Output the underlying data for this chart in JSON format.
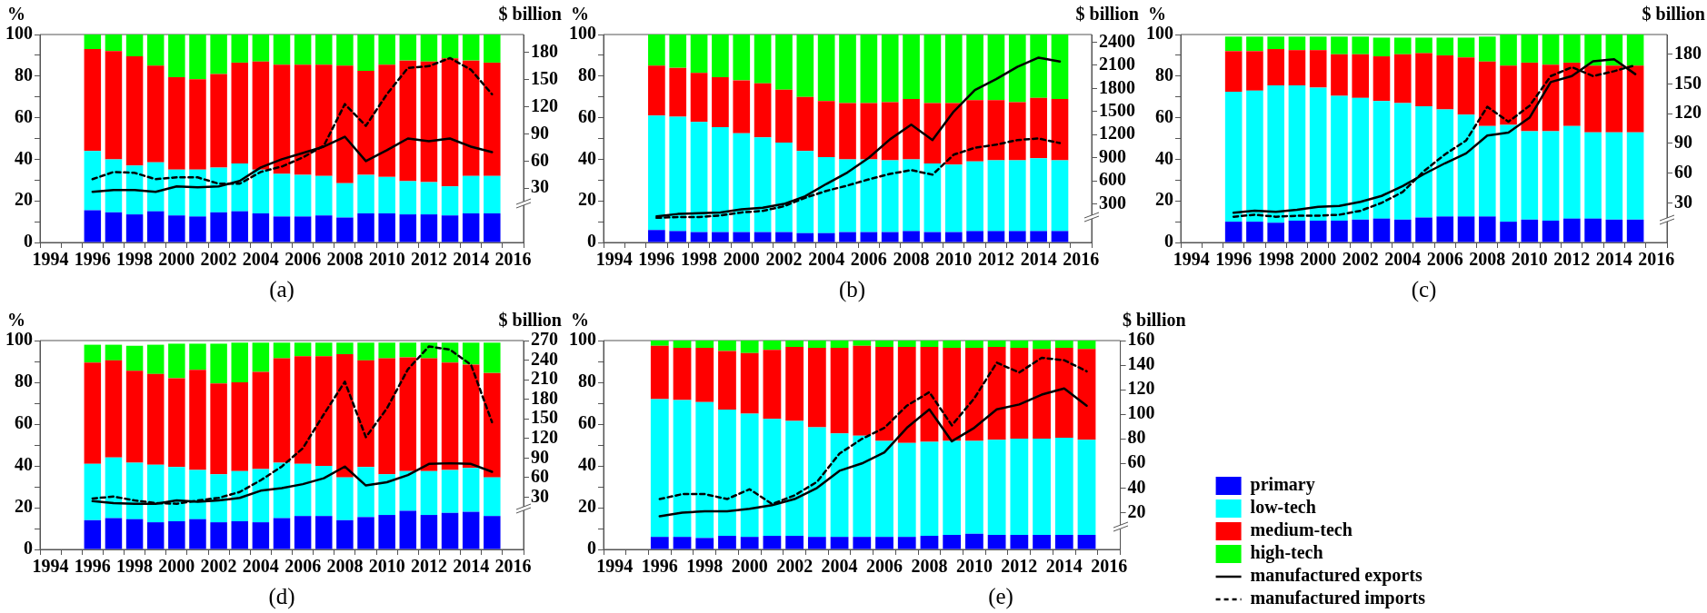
{
  "chart_data": [
    {
      "type": "bar",
      "title": "(a)",
      "ylabel": "%",
      "y2label": "$ billion",
      "stacked": true,
      "categories": [
        "1994",
        null,
        "1996",
        null,
        "1998",
        null,
        "2000",
        null,
        "2002",
        null,
        "2004",
        null,
        "2006",
        null,
        "2008",
        null,
        "2010",
        null,
        "2012",
        null,
        "2014",
        null,
        "2016"
      ],
      "ylim": [
        0,
        100
      ],
      "yticks": [
        0,
        {
          "value": 10,
          "label": null
        },
        20,
        {
          "value": 30,
          "label": null
        },
        40,
        {
          "value": 50,
          "label": null
        },
        60,
        {
          "value": 70,
          "label": null
        },
        80,
        {
          "value": 90,
          "label": null
        },
        100
      ],
      "y2lim": [
        -30,
        200
      ],
      "y2ticks": [
        30,
        60,
        90,
        120,
        150,
        180
      ],
      "series": [
        {
          "color": "#0000ff",
          "values": [
            null,
            null,
            15.5,
            14.5,
            13.5,
            15,
            13,
            12.5,
            14.5,
            15,
            14,
            12.5,
            12.5,
            13,
            12,
            14,
            14,
            13.5,
            13.5,
            13,
            14,
            14,
            null
          ]
        },
        {
          "color": "#00ffff",
          "values": [
            null,
            null,
            28.5,
            25.5,
            23.5,
            23.5,
            22,
            22.5,
            21.5,
            23,
            21,
            20.5,
            20,
            19,
            16.5,
            18.5,
            17.5,
            16,
            15.5,
            14,
            18,
            18,
            null
          ]
        },
        {
          "color": "#ff0000",
          "values": [
            null,
            null,
            49,
            52,
            52.5,
            46.5,
            44.5,
            43.5,
            45,
            48.5,
            52,
            52.5,
            53,
            53.5,
            56.5,
            50,
            54,
            58,
            58,
            61.5,
            55.5,
            54.5,
            null
          ]
        },
        {
          "color": "#00ff00",
          "values": [
            null,
            null,
            7,
            8,
            10.5,
            15,
            20.5,
            21.5,
            19,
            13.5,
            13,
            14.5,
            14.5,
            14.5,
            15,
            17.5,
            14.5,
            12.5,
            13,
            11.5,
            12.5,
            13.5,
            null
          ]
        },
        {
          "type": "line",
          "axis": "y2",
          "color": "#000000",
          "line_style": "solid",
          "values": [
            null,
            null,
            26,
            28,
            28,
            26,
            32,
            31,
            32,
            38,
            53,
            62,
            69,
            76,
            87,
            60,
            72,
            85,
            82,
            85,
            76,
            70,
            null
          ]
        },
        {
          "type": "line",
          "axis": "y2",
          "color": "#000000",
          "line_style": "dashed",
          "values": [
            null,
            null,
            40,
            48,
            47,
            40,
            42,
            42,
            35,
            35,
            48,
            54,
            64,
            77,
            123,
            99,
            134,
            163,
            165,
            174,
            161,
            134,
            null
          ]
        }
      ]
    },
    {
      "type": "bar",
      "title": "(b)",
      "ylabel": "%",
      "y2label": "$ billion",
      "stacked": true,
      "categories": [
        "1994",
        null,
        "1996",
        null,
        "1998",
        null,
        "2000",
        null,
        "2002",
        null,
        "2004",
        null,
        "2006",
        null,
        "2008",
        null,
        "2010",
        null,
        "2012",
        null,
        "2014",
        null,
        "2016"
      ],
      "ylim": [
        0,
        100
      ],
      "yticks": [
        0,
        {
          "value": 10,
          "label": null
        },
        20,
        {
          "value": 30,
          "label": null
        },
        40,
        {
          "value": 50,
          "label": null
        },
        60,
        {
          "value": 70,
          "label": null
        },
        80,
        {
          "value": 90,
          "label": null
        },
        100
      ],
      "y2lim": [
        -200,
        2500
      ],
      "y2ticks": [
        300,
        600,
        900,
        1200,
        1500,
        1800,
        2100,
        2400
      ],
      "series": [
        {
          "color": "#0000ff",
          "values": [
            null,
            null,
            6,
            5.5,
            5,
            5,
            5,
            5,
            5,
            4.5,
            4.5,
            5,
            5,
            5,
            5.5,
            5,
            5,
            5.5,
            5.5,
            5.5,
            5.5,
            5.5,
            null
          ]
        },
        {
          "color": "#00ffff",
          "values": [
            null,
            null,
            55,
            55,
            53,
            50.5,
            47.5,
            45.5,
            43,
            39.5,
            36.5,
            35,
            35,
            34.5,
            34.5,
            33,
            32.5,
            33.5,
            34,
            34,
            35,
            34,
            null
          ]
        },
        {
          "color": "#ff0000",
          "values": [
            null,
            null,
            24,
            23.5,
            23.5,
            24,
            25.5,
            26,
            25.5,
            26,
            27,
            27,
            27,
            28,
            29,
            29,
            29.5,
            29.5,
            29,
            28,
            29,
            29.5,
            null
          ]
        },
        {
          "color": "#00ff00",
          "values": [
            null,
            null,
            15,
            16,
            18.5,
            20.5,
            22,
            23.5,
            26.5,
            30,
            32,
            33,
            33,
            32.5,
            31,
            33,
            33,
            31.5,
            31.5,
            32.5,
            30.5,
            31,
            null
          ]
        },
        {
          "type": "line",
          "axis": "y2",
          "color": "#000000",
          "line_style": "solid",
          "values": [
            null,
            null,
            140,
            170,
            180,
            190,
            230,
            250,
            300,
            400,
            560,
            710,
            900,
            1140,
            1330,
            1130,
            1500,
            1780,
            1920,
            2080,
            2200,
            2150,
            null
          ]
        },
        {
          "type": "line",
          "axis": "y2",
          "color": "#000000",
          "line_style": "dashed",
          "values": [
            null,
            null,
            120,
            130,
            130,
            150,
            190,
            210,
            270,
            380,
            470,
            540,
            620,
            690,
            740,
            680,
            940,
            1030,
            1070,
            1130,
            1150,
            1090,
            null
          ]
        }
      ]
    },
    {
      "type": "bar",
      "title": "(c)",
      "ylabel": "%",
      "y2label": "$ billion",
      "stacked": true,
      "categories": [
        "1994",
        null,
        "1996",
        null,
        "1998",
        null,
        "2000",
        null,
        "2002",
        null,
        "2004",
        null,
        "2006",
        null,
        "2008",
        null,
        "2010",
        null,
        "2012",
        null,
        "2014",
        null,
        "2016"
      ],
      "ylim": [
        0,
        100
      ],
      "yticks": [
        0,
        {
          "value": 10,
          "label": null
        },
        20,
        {
          "value": 30,
          "label": null
        },
        40,
        {
          "value": 50,
          "label": null
        },
        60,
        {
          "value": 70,
          "label": null
        },
        80,
        {
          "value": 90,
          "label": null
        },
        100
      ],
      "y2lim": [
        -10,
        200
      ],
      "y2ticks": [
        30,
        60,
        90,
        120,
        150,
        180
      ],
      "series": [
        {
          "color": "#0000ff",
          "values": [
            null,
            null,
            10,
            10,
            9.5,
            10.5,
            10.5,
            10.5,
            11,
            11.5,
            11,
            12,
            12.5,
            12.5,
            12.5,
            10,
            11,
            10.5,
            11.5,
            11.5,
            11,
            11,
            null
          ]
        },
        {
          "color": "#00ffff",
          "values": [
            null,
            null,
            62.5,
            63,
            66,
            65,
            64,
            60,
            58.5,
            56.5,
            56,
            53.5,
            51.5,
            49,
            43.5,
            46.5,
            42.5,
            43,
            44.5,
            41.5,
            42,
            42,
            null
          ]
        },
        {
          "color": "#ff0000",
          "values": [
            null,
            null,
            19.5,
            19,
            17.5,
            17,
            18,
            20,
            21,
            21.5,
            23.5,
            25.5,
            26,
            27.5,
            31,
            28.5,
            33,
            32,
            30.5,
            32,
            32,
            32,
            null
          ]
        },
        {
          "color": "#00ff00",
          "values": [
            null,
            null,
            7,
            7,
            6,
            6.5,
            6.5,
            8.5,
            8.5,
            9,
            8,
            7.5,
            8.5,
            9.5,
            12,
            15,
            13.5,
            14.5,
            13.5,
            15,
            15,
            15,
            null
          ]
        },
        {
          "type": "line",
          "axis": "y2",
          "color": "#000000",
          "line_style": "solid",
          "values": [
            null,
            null,
            20,
            22,
            21,
            23,
            26,
            27,
            31,
            37,
            47,
            59,
            70,
            80,
            98,
            101,
            116,
            152,
            158,
            173,
            175,
            160,
            null
          ]
        },
        {
          "type": "line",
          "axis": "y2",
          "color": "#000000",
          "line_style": "dashed",
          "values": [
            null,
            null,
            16,
            18,
            16,
            17,
            17,
            18,
            22,
            30,
            41,
            62,
            79,
            93,
            127,
            112,
            128,
            158,
            167,
            158,
            163,
            169,
            null
          ]
        }
      ]
    },
    {
      "type": "bar",
      "title": "(d)",
      "ylabel": "%",
      "y2label": "$ billion",
      "stacked": true,
      "categories": [
        "1994",
        null,
        "1996",
        null,
        "1998",
        null,
        "2000",
        null,
        "2002",
        null,
        "2004",
        null,
        "2006",
        null,
        "2008",
        null,
        "2010",
        null,
        "2012",
        null,
        "2014",
        null,
        "2016"
      ],
      "ylim": [
        0,
        100
      ],
      "yticks": [
        0,
        {
          "value": 10,
          "label": null
        },
        20,
        {
          "value": 30,
          "label": null
        },
        40,
        {
          "value": 50,
          "label": null
        },
        60,
        {
          "value": 70,
          "label": null
        },
        80,
        {
          "value": 90,
          "label": null
        },
        100
      ],
      "y2lim": [
        -50,
        270
      ],
      "y2ticks": [
        30,
        60,
        90,
        120,
        150,
        180,
        210,
        240,
        270
      ],
      "series": [
        {
          "color": "#0000ff",
          "values": [
            null,
            null,
            14,
            15,
            14.5,
            13,
            13.5,
            14.5,
            13,
            13.5,
            13,
            15,
            16,
            16,
            14,
            15.5,
            16.5,
            18.5,
            16.5,
            17.5,
            18,
            16,
            null
          ]
        },
        {
          "color": "#00ffff",
          "values": [
            null,
            null,
            27,
            29,
            27,
            27.5,
            26,
            23.5,
            23,
            24,
            25.5,
            26.5,
            25,
            24,
            20.5,
            24,
            19.5,
            19,
            21,
            20.5,
            21,
            18.5,
            null
          ]
        },
        {
          "color": "#ff0000",
          "values": [
            null,
            null,
            48.5,
            46.5,
            44,
            43.5,
            42.5,
            48,
            43.5,
            42.5,
            46.5,
            50,
            51.5,
            52.5,
            59,
            51,
            55.5,
            54.5,
            54,
            51.5,
            49.5,
            50,
            null
          ]
        },
        {
          "color": "#00ff00",
          "values": [
            null,
            null,
            8.5,
            7.5,
            12,
            14,
            16.5,
            12.5,
            19,
            19,
            14,
            7.5,
            6.5,
            6.5,
            5.5,
            8.5,
            7.5,
            7,
            7.5,
            9.5,
            10.5,
            14.5,
            null
          ]
        },
        {
          "type": "line",
          "axis": "y2",
          "color": "#000000",
          "line_style": "solid",
          "values": [
            null,
            null,
            24,
            21,
            20,
            20,
            25,
            23,
            25,
            29,
            40,
            44,
            50,
            59,
            77,
            48,
            53,
            64,
            81,
            82,
            81,
            69,
            null
          ]
        },
        {
          "type": "line",
          "axis": "y2",
          "color": "#000000",
          "line_style": "dashed",
          "values": [
            null,
            null,
            28,
            31,
            25,
            21,
            20,
            25,
            29,
            38,
            56,
            77,
            105,
            157,
            207,
            122,
            166,
            226,
            261,
            256,
            233,
            145,
            null
          ]
        }
      ]
    },
    {
      "type": "bar",
      "title": "(e)",
      "ylabel": "%",
      "y2label": "$ billion",
      "stacked": true,
      "legend": "bottom right",
      "categories": [
        "1994",
        null,
        "1996",
        null,
        "1998",
        null,
        "2000",
        null,
        "2002",
        null,
        "2004",
        null,
        "2006",
        null,
        "2008",
        null,
        "2010",
        null,
        "2012",
        null,
        "2014",
        null,
        "2016"
      ],
      "ylim": [
        0,
        100
      ],
      "yticks": [
        0,
        {
          "value": 10,
          "label": null
        },
        20,
        {
          "value": 30,
          "label": null
        },
        40,
        {
          "value": 50,
          "label": null
        },
        60,
        {
          "value": 70,
          "label": null
        },
        80,
        {
          "value": 90,
          "label": null
        },
        100
      ],
      "y2lim": [
        -10,
        160
      ],
      "y2ticks": [
        20,
        40,
        60,
        80,
        100,
        120,
        140,
        160
      ],
      "series": [
        {
          "name": "primary",
          "color": "#0000ff",
          "values": [
            null,
            null,
            6,
            6,
            5.5,
            6.5,
            6,
            6.5,
            6.5,
            6,
            6,
            6,
            6,
            6,
            6.5,
            7,
            7.5,
            7,
            7,
            7,
            7,
            7,
            null
          ]
        },
        {
          "name": "low-tech",
          "color": "#00ffff",
          "values": [
            null,
            null,
            66,
            65.5,
            65,
            60.5,
            59,
            56,
            55,
            52.5,
            49.5,
            48.5,
            46,
            45,
            45,
            45,
            44.5,
            45.5,
            46,
            46,
            46.5,
            45.5,
            null
          ]
        },
        {
          "name": "medium-tech",
          "color": "#ff0000",
          "values": [
            null,
            null,
            25.5,
            25,
            26,
            28,
            29,
            33,
            35.5,
            38,
            41,
            43,
            45,
            46,
            45.5,
            44.5,
            44.5,
            44.5,
            43.5,
            43,
            43,
            43.5,
            null
          ]
        },
        {
          "name": "high-tech",
          "color": "#00ff00",
          "values": [
            null,
            null,
            2.5,
            3.5,
            3.5,
            5,
            6,
            4.5,
            3,
            3.5,
            3.5,
            2.5,
            3,
            3,
            3,
            3.5,
            3.5,
            3,
            3.5,
            4,
            3.5,
            4,
            null
          ]
        },
        {
          "name": "manufactured exports",
          "type": "line",
          "axis": "y2",
          "color": "#000000",
          "line_style": "solid",
          "values": [
            null,
            null,
            17,
            20,
            21,
            21,
            23,
            26,
            31,
            40,
            54,
            60,
            69,
            89,
            104,
            78,
            89,
            104,
            108,
            116,
            121,
            107,
            null
          ]
        },
        {
          "name": "manufactured imports",
          "type": "line",
          "axis": "y2",
          "color": "#000000",
          "line_style": "dashed",
          "values": [
            null,
            null,
            31,
            35,
            35,
            31,
            39,
            27,
            34,
            45,
            68,
            80,
            89,
            107,
            118,
            91,
            113,
            142,
            134,
            146,
            144,
            135,
            null
          ]
        }
      ]
    }
  ]
}
